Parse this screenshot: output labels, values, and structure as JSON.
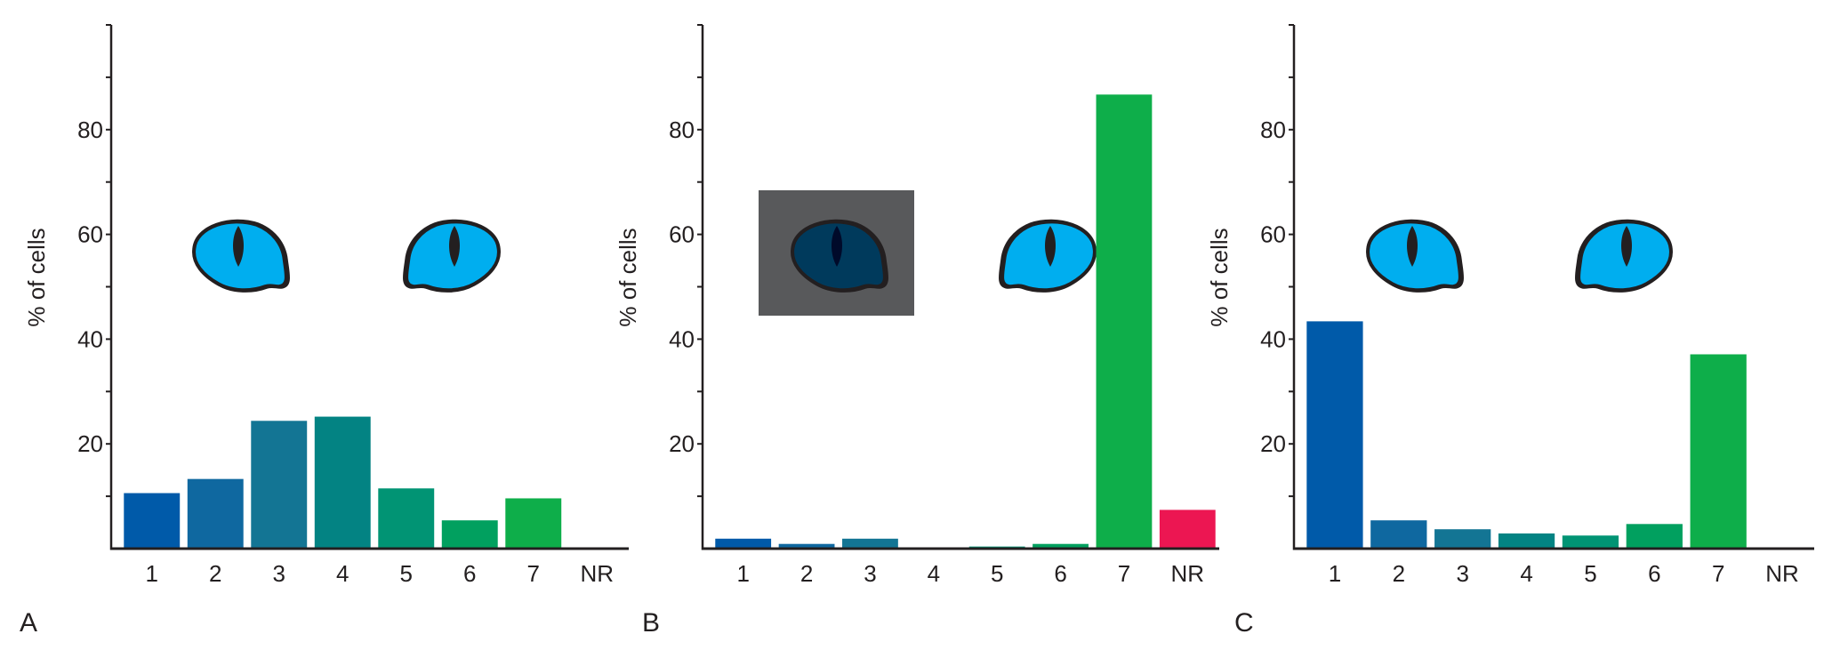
{
  "chart_data": [
    {
      "type": "bar",
      "panel_label": "A",
      "categories": [
        "1",
        "2",
        "3",
        "4",
        "5",
        "6",
        "7",
        "NR"
      ],
      "values": [
        10.6,
        13.3,
        24.4,
        25.2,
        11.5,
        5.4,
        9.6,
        0
      ],
      "ylabel": "% of cells",
      "xlabel": "",
      "ylim": [
        0,
        100
      ],
      "yticks_labeled": [
        "20",
        "40",
        "60",
        "80"
      ],
      "yticks_minor_step": 10,
      "grid": false,
      "eyes": [
        "light",
        "light"
      ]
    },
    {
      "type": "bar",
      "panel_label": "B",
      "categories": [
        "1",
        "2",
        "3",
        "4",
        "5",
        "6",
        "7",
        "NR"
      ],
      "values": [
        1.9,
        0.9,
        1.9,
        0,
        0.4,
        0.9,
        86.7,
        7.4
      ],
      "ylabel": "% of cells",
      "xlabel": "",
      "ylim": [
        0,
        100
      ],
      "yticks_labeled": [
        "20",
        "40",
        "60",
        "80"
      ],
      "yticks_minor_step": 10,
      "grid": false,
      "eyes": [
        "dark",
        "light"
      ]
    },
    {
      "type": "bar",
      "panel_label": "C",
      "categories": [
        "1",
        "2",
        "3",
        "4",
        "5",
        "6",
        "7",
        "NR"
      ],
      "values": [
        43.4,
        5.4,
        3.7,
        2.9,
        2.5,
        4.7,
        37.1,
        0
      ],
      "ylabel": "% of cells",
      "xlabel": "",
      "ylim": [
        0,
        100
      ],
      "yticks_labeled": [
        "20",
        "40",
        "60",
        "80"
      ],
      "yticks_minor_step": 10,
      "grid": false,
      "eyes": [
        "light",
        "light"
      ]
    }
  ],
  "colors": {
    "categories": [
      "#005aa9",
      "#0f68a0",
      "#137594",
      "#038383",
      "#019474",
      "#01a05f",
      "#0eae4a",
      "#ec1652"
    ],
    "axis": "#231f20",
    "eye_iris": "#00aeef",
    "eye_iris_dark": "#003a5c",
    "eye_pupil": "#231f20",
    "eye_pupil_dark": "#000a2a",
    "occluder": "#58595b"
  }
}
